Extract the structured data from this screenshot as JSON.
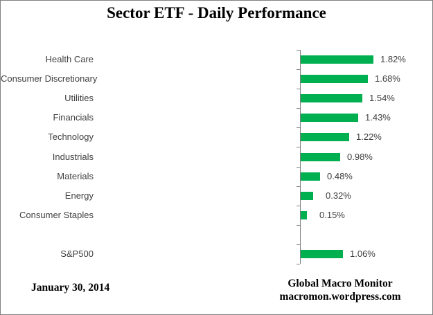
{
  "frame": {
    "border_color": "#808080",
    "background": "#ffffff"
  },
  "chart_data": {
    "type": "bar",
    "orientation": "horizontal",
    "title": "Sector ETF - Daily Performance",
    "categories": [
      "Health Care",
      "Consumer Discretionary",
      "Utilities",
      "Financials",
      "Technology",
      "Industrials",
      "Materials",
      "Energy",
      "Consumer Staples",
      "",
      "S&P500"
    ],
    "values": [
      1.82,
      1.68,
      1.54,
      1.43,
      1.22,
      0.98,
      0.48,
      0.32,
      0.15,
      null,
      1.06
    ],
    "data_labels": [
      "1.82%",
      "1.68%",
      "1.54%",
      "1.43%",
      "1.22%",
      "0.98%",
      "0.48%",
      "0.32%",
      "0.15%",
      "",
      "1.06%"
    ],
    "value_unit": "%",
    "xlim": [
      0,
      2
    ],
    "grid": false,
    "legend": false,
    "bar_color": "#00B050",
    "axis_color": "#808080"
  },
  "footer": {
    "date": "January 30, 2014",
    "source_line1": "Global Macro Monitor",
    "source_line2": "macromon.wordpress.com"
  }
}
